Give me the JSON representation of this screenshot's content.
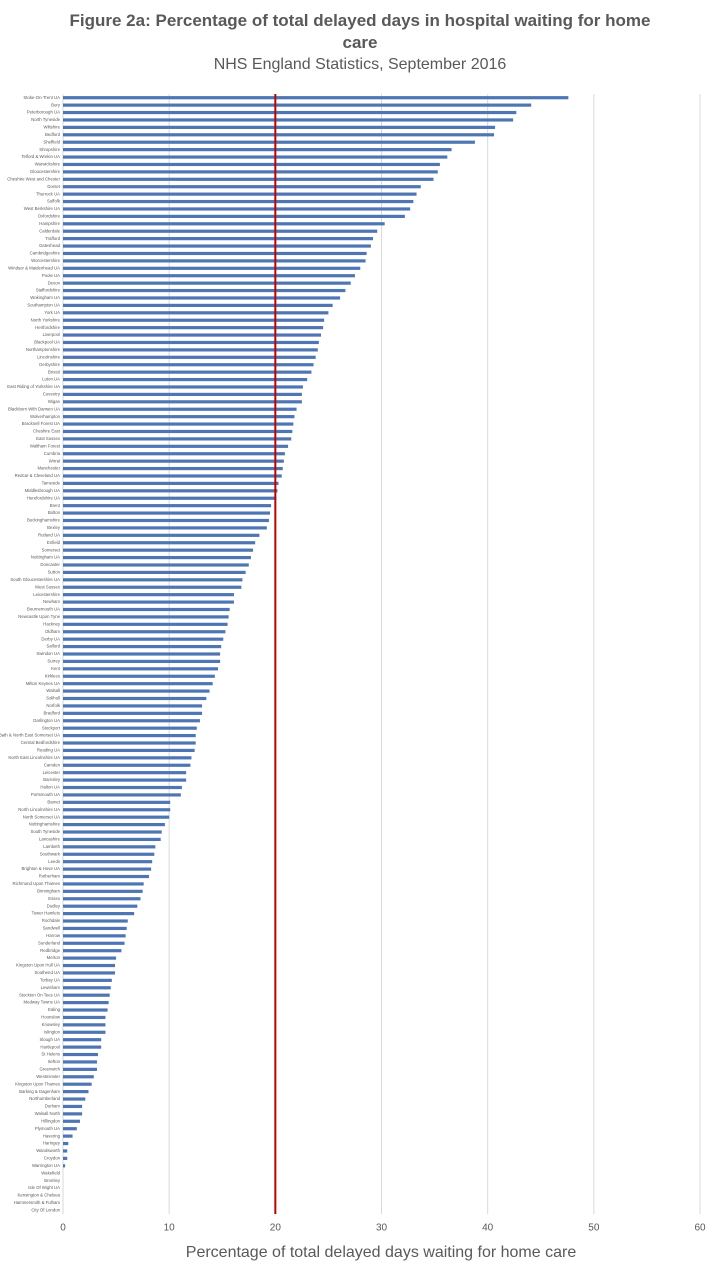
{
  "chart_data": {
    "type": "hbar",
    "title": "Figure 2a: Percentage of total delayed days in hospital waiting for home care",
    "subtitle": "NHS England Statistics, September 2016",
    "x_label": "Percentage of total delayed days waiting for home care",
    "color": "#4f76b4",
    "reference_line": {
      "value": 20,
      "color": "#c00000"
    },
    "xlim": [
      0,
      60
    ],
    "xticks": [
      0,
      10,
      20,
      30,
      40,
      50,
      60
    ],
    "grid": true,
    "categories": [
      "Stoke-On-Trent UA",
      "Bury",
      "Peterborough UA",
      "North Tyneside",
      "Wiltshire",
      "Bedford",
      "Sheffield",
      "Shropshire",
      "Telford & Wrekin UA",
      "Warwickshire",
      "Gloucestershire",
      "Cheshire West and Chester",
      "Dorset",
      "Thurrock UA",
      "Suffolk",
      "West Berkshire UA",
      "Oxfordshire",
      "Hampshire",
      "Calderdale",
      "Trafford",
      "Gateshead",
      "Cambridgeshire",
      "Worcestershire",
      "Windsor & Maidenhead UA",
      "Poole UA",
      "Devon",
      "Staffordshire",
      "Wokingham UA",
      "Southampton UA",
      "York UA",
      "North Yorkshire",
      "Hertfordshire",
      "Liverpool",
      "Blackpool UA",
      "Northamptonshire",
      "Lincolnshire",
      "Derbyshire",
      "Bristol",
      "Luton UA",
      "East Riding of Yorkshire UA",
      "Coventry",
      "Wigan",
      "Blackburn With Darwen UA",
      "Wolverhampton",
      "Bracknell Forest UA",
      "Cheshire East",
      "East Sussex",
      "Waltham Forest",
      "Cumbria",
      "Wirral",
      "Manchester",
      "Redcar & Cleveland UA",
      "Tameside",
      "Middlesbrough UA",
      "Herefordshire UA",
      "Brent",
      "Bolton",
      "Buckinghamshire",
      "Bexley",
      "Rutland UA",
      "Enfield",
      "Somerset",
      "Nottingham UA",
      "Doncaster",
      "Sutton",
      "South Gloucestershire UA",
      "West Sussex",
      "Leicestershire",
      "Newham",
      "Bournemouth UA",
      "Newcastle Upon Tyne",
      "Hackney",
      "Oldham",
      "Derby UA",
      "Salford",
      "Swindon UA",
      "Surrey",
      "Kent",
      "Kirklees",
      "Milton Keynes UA",
      "Walsall",
      "Solihull",
      "Norfolk",
      "Bradford",
      "Darlington UA",
      "Stockport",
      "Bath & North East Somerset UA",
      "Central Bedfordshire",
      "Reading UA",
      "North East Lincolnshire UA",
      "Camden",
      "Leicester",
      "Barnsley",
      "Halton UA",
      "Portsmouth UA",
      "Barnet",
      "North Lincolnshire UA",
      "North Somerset UA",
      "Nottinghamshire",
      "South Tyneside",
      "Lancashire",
      "Lambeth",
      "Southwark",
      "Leeds",
      "Brighton & Hove UA",
      "Rotherham",
      "Richmond Upon Thames",
      "Birmingham",
      "Essex",
      "Dudley",
      "Tower Hamlets",
      "Rochdale",
      "Sandwell",
      "Harrow",
      "Sunderland",
      "Redbridge",
      "Merton",
      "Kingston Upon Hull UA",
      "Southend UA",
      "Torbay UA",
      "Lewisham",
      "Stockton On Tees UA",
      "Medway Towns UA",
      "Ealing",
      "Hounslow",
      "Knowsley",
      "Islington",
      "Slough UA",
      "Hartlepool",
      "St Helens",
      "Sefton",
      "Greenwich",
      "Westminster",
      "Kingston Upon Thames",
      "Barking & Dagenham",
      "Northumberland",
      "Durham",
      "Walsall North",
      "Hillingdon",
      "Plymouth UA",
      "Havering",
      "Haringey",
      "Wandsworth",
      "Croydon",
      "Warrington UA",
      "Wakefield",
      "Bromley",
      "Isle Of Wight UA",
      "Kensington & Chelsea",
      "Hammersmith & Fulham",
      "City Of London"
    ],
    "values": [
      47.6,
      44.1,
      42.7,
      42.4,
      40.7,
      40.6,
      38.8,
      36.6,
      36.2,
      35.5,
      35.3,
      34.9,
      33.7,
      33.3,
      33.0,
      32.7,
      32.2,
      30.3,
      29.6,
      29.2,
      29.0,
      28.6,
      28.5,
      28.0,
      27.5,
      27.1,
      26.6,
      26.1,
      25.4,
      25.0,
      24.6,
      24.5,
      24.3,
      24.1,
      24.0,
      23.8,
      23.6,
      23.4,
      23.0,
      22.6,
      22.5,
      22.5,
      22.0,
      21.8,
      21.7,
      21.6,
      21.5,
      21.2,
      20.9,
      20.8,
      20.7,
      20.6,
      20.3,
      20.2,
      20.1,
      19.6,
      19.5,
      19.4,
      19.2,
      18.5,
      18.1,
      17.9,
      17.7,
      17.5,
      17.2,
      16.9,
      16.8,
      16.1,
      16.1,
      15.7,
      15.6,
      15.5,
      15.3,
      15.1,
      14.9,
      14.8,
      14.8,
      14.6,
      14.3,
      14.1,
      13.8,
      13.5,
      13.1,
      13.1,
      12.9,
      12.6,
      12.5,
      12.5,
      12.4,
      12.1,
      12.0,
      11.6,
      11.6,
      11.2,
      11.1,
      10.1,
      10.1,
      10.0,
      9.6,
      9.3,
      9.2,
      8.7,
      8.6,
      8.4,
      8.3,
      8.1,
      7.6,
      7.5,
      7.3,
      7.0,
      6.7,
      6.1,
      6.0,
      5.9,
      5.8,
      5.5,
      5.0,
      4.9,
      4.9,
      4.6,
      4.5,
      4.4,
      4.3,
      4.2,
      4.0,
      4.0,
      4.0,
      3.6,
      3.6,
      3.3,
      3.2,
      3.2,
      2.9,
      2.7,
      2.4,
      2.1,
      1.8,
      1.8,
      1.6,
      1.3,
      0.9,
      0.5,
      0.4,
      0.4,
      0.2,
      0,
      0,
      0,
      0,
      0,
      0
    ]
  }
}
